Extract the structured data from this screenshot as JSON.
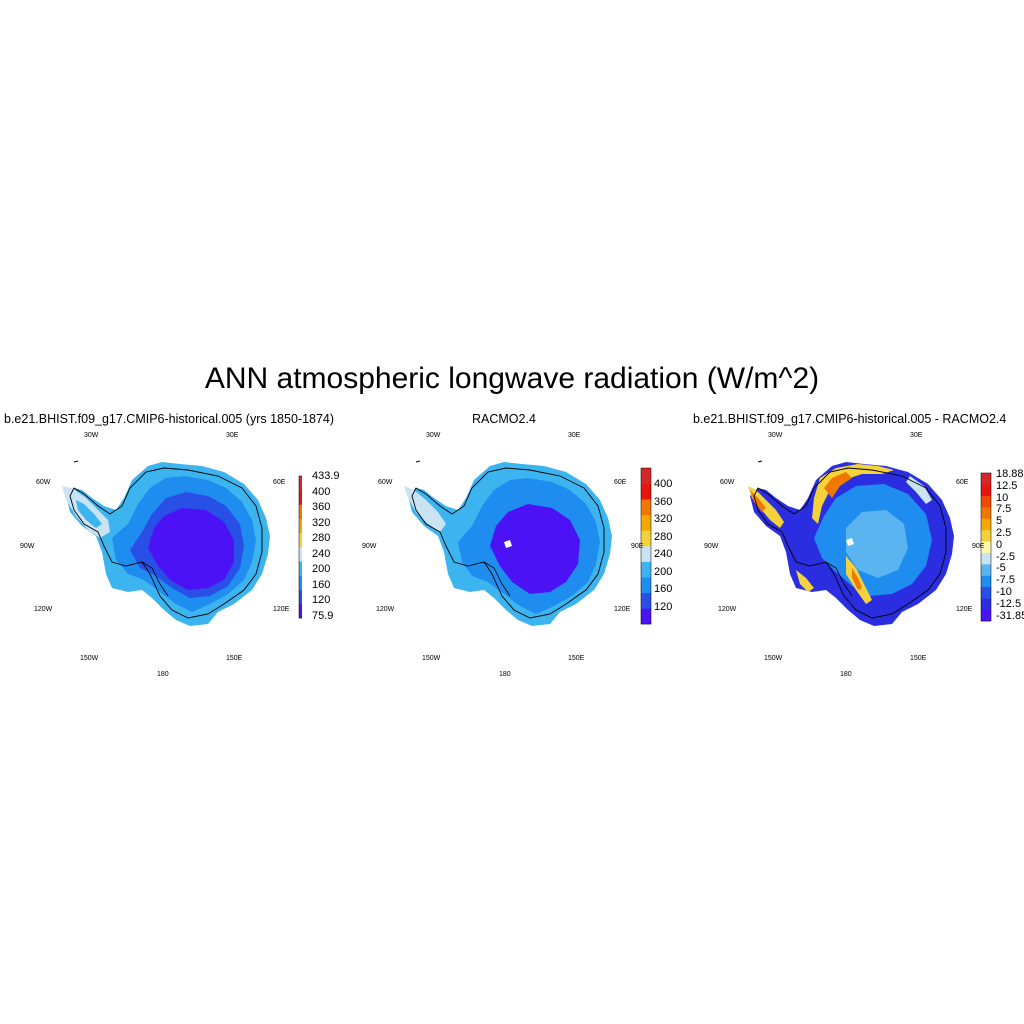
{
  "figure": {
    "title": "ANN atmospheric longwave radiation (W/m^2)"
  },
  "panels": [
    {
      "title": "b.e21.BHIST.f09_g17.CMIP6-historical.005 (yrs 1850-1874)",
      "colorbar": {
        "labels": [
          "433.9",
          "400",
          "360",
          "320",
          "280",
          "240",
          "200",
          "160",
          "120",
          "75.9"
        ],
        "colors": [
          "#d62728",
          "#e8140e",
          "#f07800",
          "#f5a800",
          "#f4d23c",
          "#c9e3f3",
          "#3cb4f0",
          "#1f8cf0",
          "#2850e6",
          "#4b12f5"
        ]
      }
    },
    {
      "title": "RACMO2.4",
      "colorbar": {
        "labels": [
          "400",
          "360",
          "320",
          "280",
          "240",
          "200",
          "160",
          "120"
        ],
        "colors": [
          "#d62728",
          "#e8140e",
          "#f07800",
          "#f5a800",
          "#f4d23c",
          "#c9e3f3",
          "#3cb4f0",
          "#1f8cf0",
          "#2850e6",
          "#4b12f5"
        ]
      }
    },
    {
      "title": "b.e21.BHIST.f09_g17.CMIP6-historical.005 - RACMO2.4",
      "colorbar": {
        "labels": [
          "18.88",
          "12.5",
          "10",
          "7.5",
          "5",
          "2.5",
          "0",
          "-2.5",
          "-5",
          "-7.5",
          "-10",
          "-12.5",
          "-31.85"
        ],
        "colors": [
          "#d62728",
          "#e8140e",
          "#f04a00",
          "#f07800",
          "#f5a800",
          "#f4d23c",
          "#fff9b0",
          "#c9e3f3",
          "#5ab4f0",
          "#1f8cf0",
          "#2850e6",
          "#2a2ee0",
          "#4b12f5"
        ]
      }
    }
  ],
  "longitude_labels": {
    "top_left": "30W",
    "top_right": "30E",
    "upper_left": "60W",
    "upper_right": "60E",
    "left": "90W",
    "right": "90E",
    "lower_left": "120W",
    "lower_right": "120E",
    "bottom_left": "150W",
    "bottom_right": "150E",
    "bottom": "180"
  },
  "map_colors": {
    "outer_ring": "#3cb4f0",
    "mid_ring": "#1f8cf0",
    "inner_ring": "#2850e6",
    "interior": "#4b12f5",
    "peninsula": "#c9e3f3",
    "diff_warm": "#f4d23c",
    "diff_hot": "#f07800",
    "diff_pale": "#c9e3f3"
  }
}
